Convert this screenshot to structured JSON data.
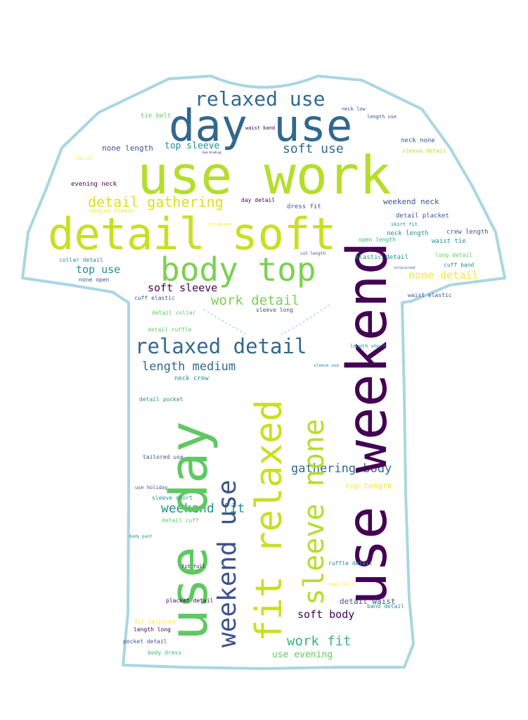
{
  "colors": {
    "outline": "#a9d6e3",
    "shirt_fill": "#ffffff",
    "palette": [
      "#440154",
      "#3b528b",
      "#21918c",
      "#5ec962",
      "#b5de2b",
      "#fde725",
      "#31688e",
      "#35b779"
    ]
  },
  "words": {
    "use_work": "use work",
    "detail_soft": "detail soft",
    "day_use": "day use",
    "use_weekend": "use weekend",
    "use_day": "use day",
    "fit_relaxed": "fit relaxed",
    "sleeve_none": "sleeve none",
    "weekend_use": "weekend use",
    "body_top": "body top",
    "relaxed_use": "relaxed use",
    "relaxed_detail": "relaxed detail",
    "detail_gathering": "detail gathering",
    "soft_use": "soft use",
    "length_medium": "length medium",
    "work_detail": "work detail",
    "soft_sleeve": "soft sleeve",
    "gathering_body": "gathering body",
    "weekend_fit": "weekend fit",
    "work_fit": "work fit",
    "soft_body": "soft body",
    "use_evening": "use evening",
    "top_use": "top use",
    "none_detail": "none detail",
    "top_sleeve": "top sleeve",
    "none_length": "none length",
    "weekend_neck": "weekend neck",
    "top_length": "top length",
    "detail_waist": "detail waist",
    "tie_belt": "tie belt",
    "neck_low": "neck low",
    "length_use": "length use",
    "waist_band": "waist band",
    "neck_none": "neck none",
    "sleeve_detail": "sleeve detail",
    "low_cut": "low cut",
    "hem_binding": "hem binding",
    "evening_neck": "evening neck",
    "medium_sleeve": "medium sleeve",
    "day_detail": "day detail",
    "dress_fit": "dress fit",
    "detail_placket": "detail placket",
    "skirt_fit": "skirt fit",
    "occasion": "occasion",
    "neck_length": "neck length",
    "crew_length": "crew length",
    "open_length": "open length",
    "waist_tie": "waist tie",
    "cut_length": "cut length",
    "elastic_detail": "elastic detail",
    "long_detail": "long detail",
    "cuff_band": "cuff band",
    "collar_detail": "collar detail",
    "structured": "structured",
    "none_open": "none open",
    "waist_elastic": "waist elastic",
    "cuff_elastic": "cuff elastic",
    "detail_collar": "detail collar",
    "sleeve_long": "sleeve long",
    "detail_ruffle": "detail ruffle",
    "length_short": "length short",
    "sleeve_use": "sleeve use",
    "neck_crew": "neck crew",
    "detail_pocket": "detail pocket",
    "tailored_use": "tailored use",
    "use_holiday": "use holiday",
    "sleeve_short": "sleeve short",
    "detail_cuff": "detail cuff",
    "body_pant": "body pant",
    "ruffle_detail": "ruffle detail",
    "fit_full": "fit full",
    "body_skirt": "body skirt",
    "placket_detail": "placket detail",
    "band_detail": "band detail",
    "fit_tailored": "fit tailored",
    "length_long": "length long",
    "pocket_detail": "pocket detail",
    "body_dress": "body dress"
  }
}
